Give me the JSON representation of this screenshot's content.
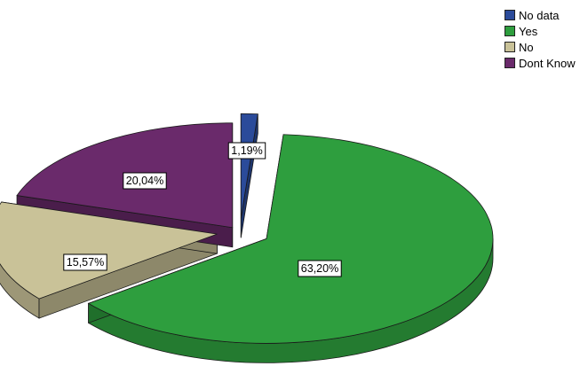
{
  "chart_data": {
    "type": "pie",
    "style": "3d-exploded",
    "slices": [
      {
        "name": "No data",
        "value": 1.19,
        "label": "1,19%",
        "color": "#2b4b9a"
      },
      {
        "name": "Yes",
        "value": 63.2,
        "label": "63,20%",
        "color": "#2e9e3e"
      },
      {
        "name": "No",
        "value": 15.57,
        "label": "15,57%",
        "color": "#c9c298"
      },
      {
        "name": "Dont Know",
        "value": 20.04,
        "label": "20,04%",
        "color": "#6a2a6b"
      }
    ],
    "legend": {
      "placement": "top-right",
      "entries": [
        "No data",
        "Yes",
        "No",
        "Dont Know"
      ]
    }
  }
}
